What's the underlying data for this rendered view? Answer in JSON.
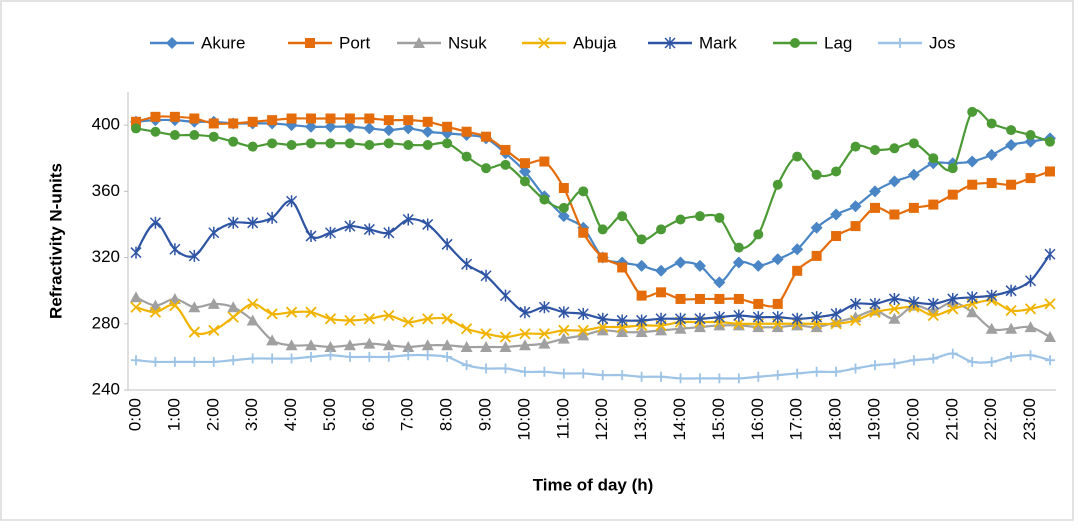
{
  "chart_data": {
    "type": "line",
    "x_label": "Time of day (h)",
    "y_label": "Refractivity N-units",
    "legend": "top",
    "grid": false,
    "ylim": [
      240,
      420
    ],
    "yticks": [
      240,
      280,
      320,
      360,
      400
    ],
    "categories": [
      "0:00",
      null,
      "1:00",
      null,
      "2:00",
      null,
      "3:00",
      null,
      "4:00",
      null,
      "5:00",
      null,
      "6:00",
      null,
      "7:00",
      null,
      "8:00",
      null,
      "9:00",
      null,
      "10:00",
      null,
      "11:00",
      null,
      "12:00",
      null,
      "13:00",
      null,
      "14:00",
      null,
      "15:00",
      null,
      "16:00",
      null,
      "17:00",
      null,
      "18:00",
      null,
      "19:00",
      null,
      "20:00",
      null,
      "21:00",
      null,
      "22:00",
      null,
      "23:00",
      null
    ],
    "series": [
      {
        "name": "Akure",
        "color": "#4a86c5",
        "marker": "diamond",
        "values": [
          402,
          403,
          403,
          402,
          402,
          401,
          401,
          401,
          400,
          399,
          399,
          399,
          398,
          397,
          398,
          396,
          395,
          394,
          392,
          383,
          372,
          357,
          345,
          338,
          320,
          317,
          315,
          312,
          317,
          315,
          305,
          317,
          315,
          319,
          325,
          338,
          346,
          351,
          360,
          366,
          370,
          377,
          377,
          378,
          382,
          388,
          390,
          392
        ]
      },
      {
        "name": "Port",
        "color": "#e46c0a",
        "marker": "square",
        "values": [
          402,
          405,
          405,
          404,
          401,
          401,
          402,
          403,
          404,
          404,
          404,
          404,
          404,
          403,
          403,
          402,
          399,
          396,
          393,
          385,
          377,
          378,
          362,
          335,
          320,
          314,
          297,
          299,
          295,
          295,
          295,
          295,
          292,
          292,
          312,
          321,
          333,
          339,
          350,
          346,
          350,
          352,
          358,
          364,
          365,
          364,
          368,
          372
        ]
      },
      {
        "name": "Nsuk",
        "color": "#a0a0a0",
        "marker": "triangle",
        "values": [
          296,
          291,
          295,
          290,
          292,
          290,
          282,
          270,
          267,
          267,
          266,
          267,
          268,
          267,
          266,
          267,
          267,
          266,
          266,
          266,
          267,
          268,
          271,
          273,
          276,
          275,
          275,
          276,
          277,
          278,
          279,
          279,
          278,
          278,
          279,
          278,
          281,
          284,
          288,
          283,
          291,
          288,
          293,
          287,
          277,
          277,
          278,
          272
        ]
      },
      {
        "name": "Abuja",
        "color": "#f0b400",
        "marker": "x",
        "values": [
          290,
          287,
          291,
          275,
          276,
          284,
          292,
          286,
          287,
          287,
          283,
          282,
          283,
          285,
          281,
          283,
          283,
          277,
          274,
          272,
          274,
          274,
          276,
          276,
          278,
          278,
          279,
          279,
          281,
          281,
          281,
          280,
          280,
          280,
          280,
          280,
          280,
          282,
          287,
          289,
          290,
          285,
          289,
          292,
          294,
          288,
          289,
          292
        ]
      },
      {
        "name": "Mark",
        "color": "#2e54a4",
        "marker": "star",
        "values": [
          323,
          341,
          325,
          321,
          335,
          341,
          341,
          344,
          354,
          333,
          335,
          339,
          337,
          335,
          343,
          340,
          328,
          316,
          309,
          297,
          287,
          290,
          287,
          286,
          283,
          282,
          282,
          283,
          283,
          283,
          284,
          285,
          284,
          284,
          283,
          284,
          286,
          292,
          292,
          295,
          293,
          292,
          295,
          296,
          297,
          300,
          306,
          322
        ]
      },
      {
        "name": "Lag",
        "color": "#4c9a35",
        "marker": "circle",
        "values": [
          398,
          396,
          394,
          394,
          393,
          390,
          387,
          389,
          388,
          389,
          389,
          389,
          388,
          389,
          388,
          388,
          389,
          381,
          374,
          376,
          366,
          355,
          350,
          360,
          337,
          345,
          331,
          337,
          343,
          345,
          344,
          326,
          334,
          364,
          381,
          370,
          372,
          387,
          385,
          386,
          389,
          380,
          374,
          408,
          401,
          397,
          394,
          390
        ]
      },
      {
        "name": "Jos",
        "color": "#9dc3e6",
        "marker": "plus",
        "values": [
          258,
          257,
          257,
          257,
          257,
          258,
          259,
          259,
          259,
          260,
          261,
          260,
          260,
          260,
          261,
          261,
          260,
          255,
          253,
          253,
          251,
          251,
          250,
          250,
          249,
          249,
          248,
          248,
          247,
          247,
          247,
          247,
          248,
          249,
          250,
          251,
          251,
          253,
          255,
          256,
          258,
          259,
          262,
          257,
          257,
          260,
          261,
          258
        ]
      }
    ]
  }
}
